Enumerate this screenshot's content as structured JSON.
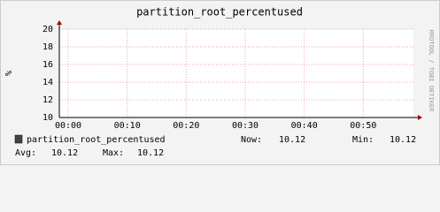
{
  "chart_data": {
    "type": "line",
    "title": "partition_root_percentused",
    "y_label": "%",
    "side_label": "RRDTOOL / TOBI OETIKER",
    "xlim": [
      -1.5,
      58.5
    ],
    "xticks": [
      {
        "value": 0,
        "label": "00:00"
      },
      {
        "value": 10,
        "label": "00:10"
      },
      {
        "value": 20,
        "label": "00:20"
      },
      {
        "value": 30,
        "label": "00:30"
      },
      {
        "value": 40,
        "label": "00:40"
      },
      {
        "value": 50,
        "label": "00:50"
      }
    ],
    "ylim": [
      10,
      20
    ],
    "yticks": [
      10,
      12,
      14,
      16,
      18,
      20
    ],
    "grid": true,
    "series": [
      {
        "name": "partition_root_percentused",
        "color": "#444444",
        "stats": [
          {
            "label": "Now:",
            "value": 10.12
          },
          {
            "label": "Min:",
            "value": 10.12
          },
          {
            "label": "Avg:",
            "value": 10.12
          },
          {
            "label": "Max:",
            "value": 10.12
          }
        ]
      }
    ]
  }
}
